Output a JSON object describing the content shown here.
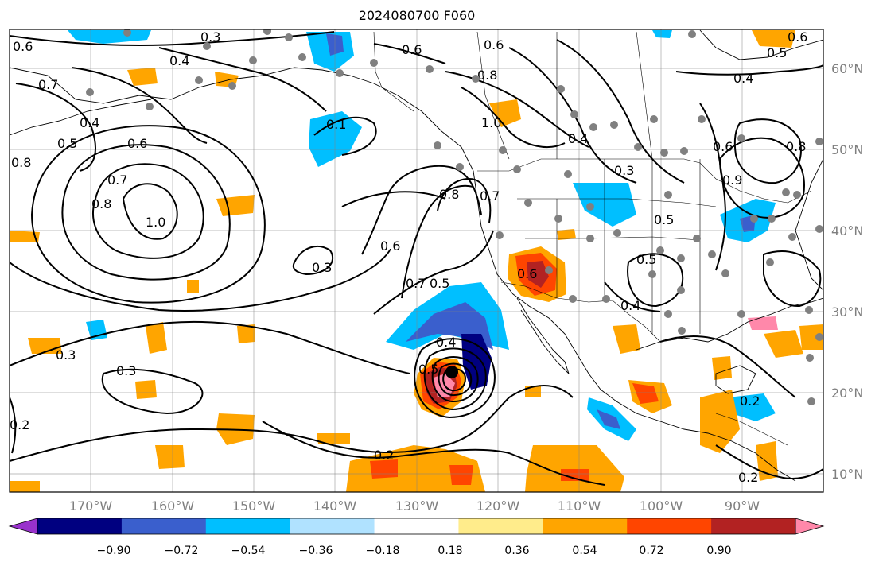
{
  "title": "2024080700 F060",
  "map": {
    "lon_range": [
      -180,
      -80
    ],
    "lat_range": [
      8,
      65
    ],
    "lat_ticks": [
      "10°N",
      "20°N",
      "30°N",
      "40°N",
      "50°N",
      "60°N"
    ],
    "lon_ticks": [
      "170°W",
      "160°W",
      "150°W",
      "140°W",
      "130°W",
      "120°W",
      "110°W",
      "100°W",
      "90°W"
    ],
    "grid": true,
    "contour_labels": [
      "0.6",
      "0.3",
      "0.4",
      "0.6",
      "0.7",
      "0.4",
      "0.5",
      "0.8",
      "0.7",
      "0.6",
      "0.8",
      "1.0",
      "0.1",
      "0.7",
      "0.8",
      "1.0",
      "0.4",
      "0.6",
      "0.3",
      "0.6",
      "0.5",
      "0.7",
      "0.8",
      "0.6",
      "0.3",
      "0.4",
      "0.5",
      "0.3",
      "0.3",
      "0.5",
      "0.4",
      "0.2",
      "0.2",
      "0.2",
      "0.5",
      "0.4",
      "0.6",
      "0.8",
      "0.9",
      "0.6",
      "0.5",
      "0.2"
    ],
    "station_marker_color": "#808080"
  },
  "colorbar": {
    "colors": [
      "#9932cc",
      "#000080",
      "#3a5fcd",
      "#00bfff",
      "#b0e2ff",
      "#ffffff",
      "#ffec8b",
      "#ffa500",
      "#ff4500",
      "#b22222",
      "#ff88aa"
    ],
    "tick_labels": [
      "−0.90",
      "−0.72",
      "−0.54",
      "−0.36",
      "−0.18",
      "0.18",
      "0.36",
      "0.54",
      "0.72",
      "0.90"
    ],
    "extend": "both"
  }
}
